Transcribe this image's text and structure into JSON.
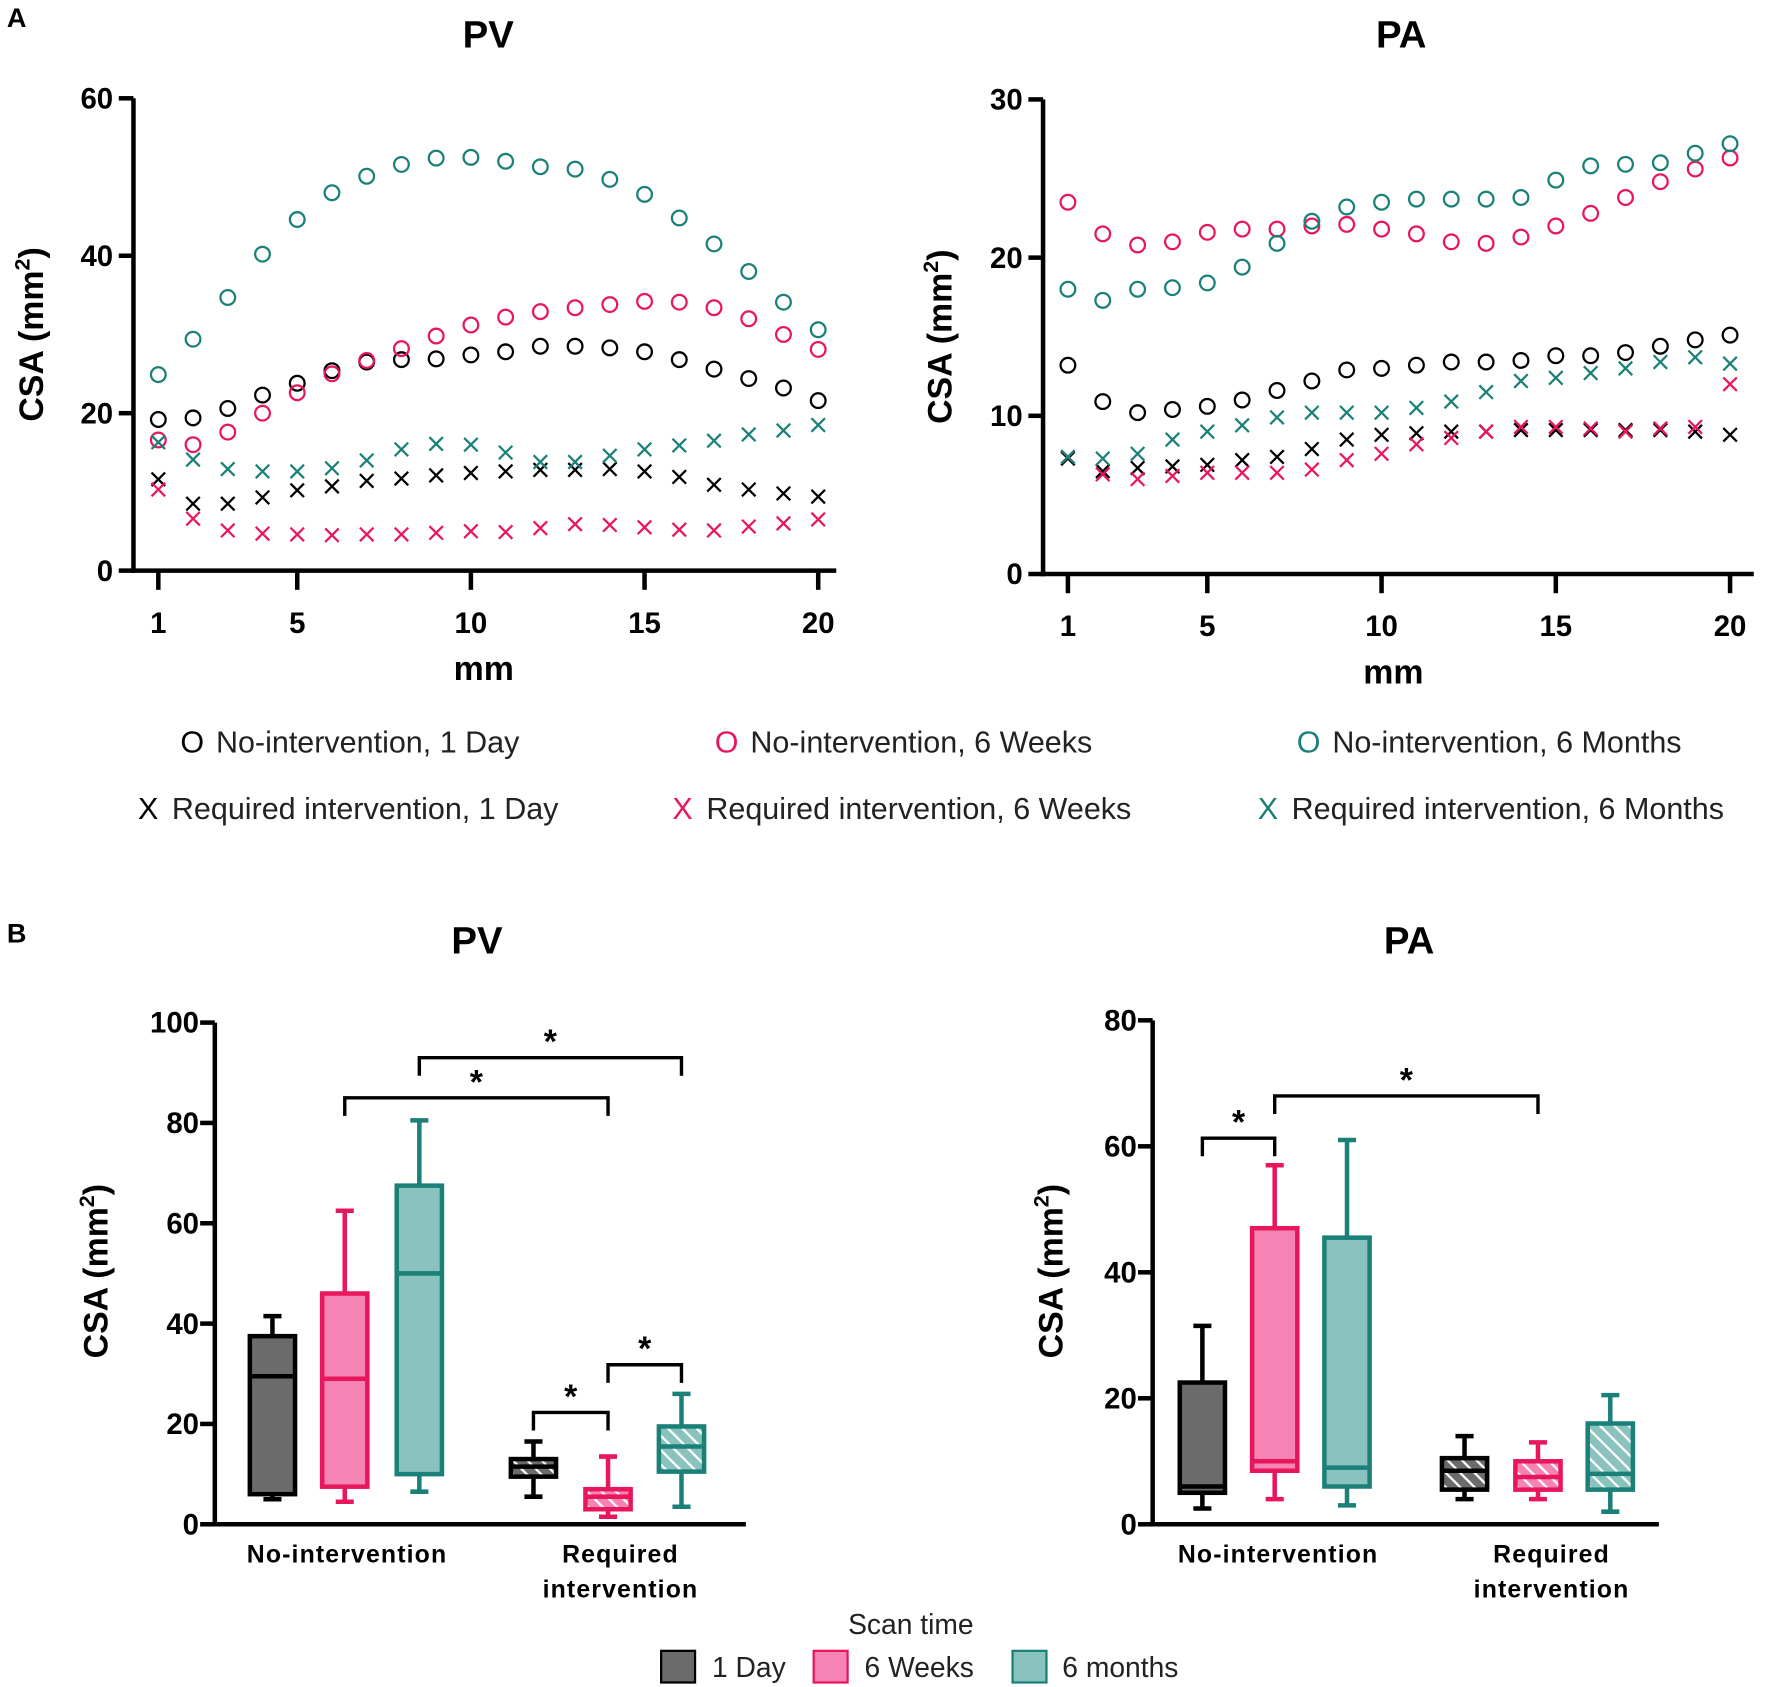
{
  "panel_labels": {
    "a": "A",
    "b": "B"
  },
  "legend_a": [
    {
      "label": "No-intervention, 1 Day",
      "marker": "circle",
      "color": "#000000"
    },
    {
      "label": "No-intervention, 6 Weeks",
      "marker": "circle",
      "color": "#e8175d"
    },
    {
      "label": "No-intervention, 6 Months",
      "marker": "circle",
      "color": "#1a8078"
    },
    {
      "label": "Required intervention, 1 Day",
      "marker": "x",
      "color": "#000000"
    },
    {
      "label": "Required intervention, 6 Weeks",
      "marker": "x",
      "color": "#e8175d"
    },
    {
      "label": "Required intervention, 6 Months",
      "marker": "x",
      "color": "#1a8078"
    }
  ],
  "legend_a_symbols": {
    "circle": "O",
    "x": "X"
  },
  "legend_b": {
    "title": "Scan time",
    "items": [
      {
        "label": "1 Day",
        "fill": "#6b6b6b",
        "stroke": "#000000"
      },
      {
        "label": "6 Weeks",
        "fill": "#f584b4",
        "stroke": "#e8175d"
      },
      {
        "label": "6 months",
        "fill": "#8ac3be",
        "stroke": "#1a8078"
      }
    ]
  },
  "chart_data": [
    {
      "type": "scatter",
      "title": "PV",
      "xlabel": "mm",
      "ylabel": "CSA (mm²)",
      "xlim": [
        1,
        20
      ],
      "ylim": [
        0,
        60
      ],
      "xticks": [
        1,
        5,
        10,
        15,
        20
      ],
      "yticks": [
        0,
        20,
        40,
        60
      ],
      "grid": false,
      "x": [
        1,
        2,
        3,
        4,
        5,
        6,
        7,
        8,
        9,
        10,
        11,
        12,
        13,
        14,
        15,
        16,
        17,
        18,
        19,
        20
      ],
      "series": [
        {
          "name": "No-intervention, 1 Day",
          "marker": "circle",
          "color": "#000000",
          "values": [
            19.2,
            19.4,
            20.6,
            22.3,
            23.8,
            25.4,
            26.5,
            26.8,
            26.9,
            27.4,
            27.8,
            28.5,
            28.5,
            28.3,
            27.8,
            26.8,
            25.6,
            24.4,
            23.2,
            21.6
          ]
        },
        {
          "name": "No-intervention, 6 Weeks",
          "marker": "circle",
          "color": "#e8175d",
          "values": [
            16.6,
            16.0,
            17.6,
            20.0,
            22.6,
            25.0,
            26.7,
            28.2,
            29.8,
            31.2,
            32.2,
            32.9,
            33.4,
            33.8,
            34.2,
            34.1,
            33.4,
            32.0,
            30.0,
            28.1
          ]
        },
        {
          "name": "No-intervention, 6 Months",
          "marker": "circle",
          "color": "#1a8078",
          "values": [
            24.9,
            29.4,
            34.7,
            40.2,
            44.6,
            48.0,
            50.1,
            51.6,
            52.4,
            52.5,
            52.0,
            51.3,
            51.0,
            49.7,
            47.8,
            44.8,
            41.5,
            38.0,
            34.1,
            30.6
          ]
        },
        {
          "name": "Required intervention, 1 Day",
          "marker": "x",
          "color": "#000000",
          "values": [
            11.6,
            8.5,
            8.5,
            9.3,
            10.2,
            10.7,
            11.4,
            11.7,
            12.1,
            12.4,
            12.6,
            12.8,
            12.8,
            12.9,
            12.6,
            11.9,
            10.9,
            10.3,
            9.8,
            9.4
          ]
        },
        {
          "name": "Required intervention, 6 Weeks",
          "marker": "x",
          "color": "#e8175d",
          "values": [
            10.3,
            6.6,
            5.1,
            4.7,
            4.6,
            4.5,
            4.6,
            4.6,
            4.8,
            5.0,
            4.9,
            5.4,
            5.9,
            5.8,
            5.5,
            5.2,
            5.1,
            5.6,
            6.0,
            6.5
          ]
        },
        {
          "name": "Required intervention, 6 Months",
          "marker": "x",
          "color": "#1a8078",
          "values": [
            16.3,
            14.1,
            12.9,
            12.6,
            12.6,
            13.0,
            14.0,
            15.4,
            16.1,
            16.0,
            15.0,
            13.8,
            13.8,
            14.6,
            15.4,
            15.9,
            16.5,
            17.3,
            17.8,
            18.5
          ]
        }
      ]
    },
    {
      "type": "scatter",
      "title": "PA",
      "xlabel": "mm",
      "ylabel": "CSA (mm²)",
      "xlim": [
        1,
        20
      ],
      "ylim": [
        0,
        30
      ],
      "xticks": [
        1,
        5,
        10,
        15,
        20
      ],
      "yticks": [
        0,
        10,
        20,
        30
      ],
      "grid": false,
      "x": [
        1,
        2,
        3,
        4,
        5,
        6,
        7,
        8,
        9,
        10,
        11,
        12,
        13,
        14,
        15,
        16,
        17,
        18,
        19,
        20
      ],
      "series": [
        {
          "name": "No-intervention, 1 Day",
          "marker": "circle",
          "color": "#000000",
          "values": [
            13.2,
            10.9,
            10.2,
            10.4,
            10.6,
            11.0,
            11.6,
            12.2,
            12.9,
            13.0,
            13.2,
            13.4,
            13.4,
            13.5,
            13.8,
            13.8,
            14.0,
            14.4,
            14.8,
            15.1
          ]
        },
        {
          "name": "No-intervention, 6 Weeks",
          "marker": "circle",
          "color": "#e8175d",
          "values": [
            23.5,
            21.5,
            20.8,
            21.0,
            21.6,
            21.8,
            21.8,
            22.0,
            22.1,
            21.8,
            21.5,
            21.0,
            20.9,
            21.3,
            22.0,
            22.8,
            23.8,
            24.8,
            25.6,
            26.3
          ]
        },
        {
          "name": "No-intervention, 6 Months",
          "marker": "circle",
          "color": "#1a8078",
          "values": [
            18.0,
            17.3,
            18.0,
            18.1,
            18.4,
            19.4,
            20.9,
            22.3,
            23.2,
            23.5,
            23.7,
            23.7,
            23.7,
            23.8,
            24.9,
            25.8,
            25.9,
            26.0,
            26.6,
            27.2
          ]
        },
        {
          "name": "Required intervention, 1 Day",
          "marker": "x",
          "color": "#000000",
          "values": [
            7.3,
            6.5,
            6.7,
            6.8,
            6.9,
            7.2,
            7.4,
            7.9,
            8.5,
            8.8,
            8.9,
            9.0,
            9.0,
            9.1,
            9.1,
            9.1,
            9.1,
            9.1,
            9.0,
            8.8
          ]
        },
        {
          "name": "Required intervention, 6 Weeks",
          "marker": "x",
          "color": "#e8175d",
          "values": [
            7.4,
            6.3,
            6.0,
            6.2,
            6.4,
            6.4,
            6.4,
            6.6,
            7.2,
            7.6,
            8.2,
            8.6,
            9.0,
            9.3,
            9.3,
            9.2,
            9.0,
            9.2,
            9.3,
            12.0
          ]
        },
        {
          "name": "Required intervention, 6 Months",
          "marker": "x",
          "color": "#1a8078",
          "values": [
            7.4,
            7.3,
            7.6,
            8.5,
            9.0,
            9.4,
            9.9,
            10.2,
            10.2,
            10.2,
            10.5,
            10.9,
            11.5,
            12.2,
            12.4,
            12.7,
            13.0,
            13.4,
            13.7,
            13.3
          ]
        }
      ]
    },
    {
      "type": "box",
      "title": "PV",
      "ylabel": "CSA (mm²)",
      "ylim": [
        0,
        100
      ],
      "yticks": [
        0,
        20,
        40,
        60,
        80,
        100
      ],
      "groups": [
        [
          "No-intervention"
        ],
        [
          "Required",
          "intervention"
        ]
      ],
      "boxes": [
        {
          "group": 0,
          "series": "1 Day",
          "min": 5,
          "q1": 6,
          "median": 29.5,
          "q3": 37.5,
          "max": 41.5,
          "hatched": false
        },
        {
          "group": 0,
          "series": "6 Weeks",
          "min": 4.5,
          "q1": 7.5,
          "median": 29,
          "q3": 46,
          "max": 62.5,
          "hatched": false
        },
        {
          "group": 0,
          "series": "6 months",
          "min": 6.5,
          "q1": 10,
          "median": 50,
          "q3": 67.5,
          "max": 80.5,
          "hatched": false
        },
        {
          "group": 1,
          "series": "1 Day",
          "min": 5.5,
          "q1": 9.5,
          "median": 11.5,
          "q3": 13,
          "max": 16.5,
          "hatched": true
        },
        {
          "group": 1,
          "series": "6 Weeks",
          "min": 1.5,
          "q1": 3,
          "median": 5.5,
          "q3": 7,
          "max": 13.5,
          "hatched": true
        },
        {
          "group": 1,
          "series": "6 months",
          "min": 3.5,
          "q1": 10.5,
          "median": 15.5,
          "q3": 19.5,
          "max": 26,
          "hatched": true
        }
      ],
      "significance": [
        {
          "from": 1,
          "to": 4,
          "y": 85,
          "label": "*"
        },
        {
          "from": 2,
          "to": 5,
          "y": 93,
          "label": "*"
        },
        {
          "from": 3,
          "to": 4,
          "y": 22.3,
          "label": "*"
        },
        {
          "from": 4,
          "to": 5,
          "y": 31.8,
          "label": "*"
        }
      ]
    },
    {
      "type": "box",
      "title": "PA",
      "ylabel": "CSA (mm²)",
      "ylim": [
        0,
        80
      ],
      "yticks": [
        0,
        20,
        40,
        60,
        80
      ],
      "groups": [
        [
          "No-intervention"
        ],
        [
          "Required",
          "intervention"
        ]
      ],
      "boxes": [
        {
          "group": 0,
          "series": "1 Day",
          "min": 2.5,
          "q1": 5,
          "median": 6,
          "q3": 22.5,
          "max": 31.5,
          "hatched": false
        },
        {
          "group": 0,
          "series": "6 Weeks",
          "min": 4,
          "q1": 8.5,
          "median": 10,
          "q3": 47,
          "max": 57,
          "hatched": false
        },
        {
          "group": 0,
          "series": "6 months",
          "min": 3,
          "q1": 6,
          "median": 9,
          "q3": 45.5,
          "max": 61,
          "hatched": false
        },
        {
          "group": 1,
          "series": "1 Day",
          "min": 4,
          "q1": 5.5,
          "median": 8.5,
          "q3": 10.5,
          "max": 14,
          "hatched": true
        },
        {
          "group": 1,
          "series": "6 Weeks",
          "min": 4,
          "q1": 5.5,
          "median": 7.5,
          "q3": 10,
          "max": 13,
          "hatched": true
        },
        {
          "group": 1,
          "series": "6 months",
          "min": 2,
          "q1": 5.5,
          "median": 8,
          "q3": 16,
          "max": 20.5,
          "hatched": true
        }
      ],
      "significance": [
        {
          "from": 0,
          "to": 1,
          "y": 61.3,
          "label": "*"
        },
        {
          "from": 1,
          "to": 4,
          "y": 68,
          "label": "*"
        }
      ]
    }
  ]
}
